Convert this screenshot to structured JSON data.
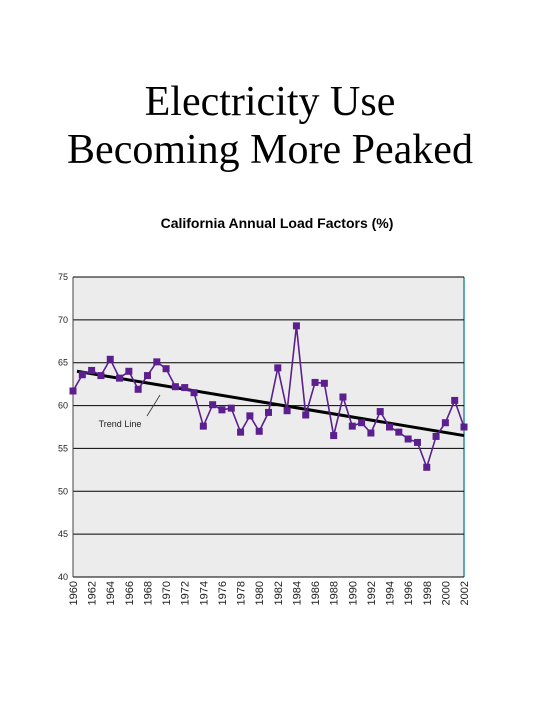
{
  "slide": {
    "title_line1": "Electricity Use",
    "title_line2": "Becoming More Peaked"
  },
  "chart_data": {
    "type": "line",
    "title": "California Annual Load Factors (%)",
    "xlabel": "",
    "ylabel": "",
    "ylim": [
      40,
      75
    ],
    "yticks": [
      40,
      45,
      50,
      55,
      60,
      65,
      70,
      75
    ],
    "xlim": [
      1960,
      2002
    ],
    "xticks": [
      1960,
      1962,
      1964,
      1966,
      1968,
      1970,
      1972,
      1974,
      1976,
      1978,
      1980,
      1982,
      1984,
      1986,
      1988,
      1990,
      1992,
      1994,
      1996,
      1998,
      2000,
      2002
    ],
    "grid": true,
    "series": [
      {
        "color": "#5b1f8f",
        "marker": "square",
        "x": [
          1960,
          1961,
          1962,
          1963,
          1964,
          1965,
          1966,
          1967,
          1968,
          1969,
          1970,
          1971,
          1972,
          1973,
          1974,
          1975,
          1976,
          1977,
          1978,
          1979,
          1980,
          1981,
          1982,
          1983,
          1984,
          1985,
          1986,
          1987,
          1988,
          1989,
          1990,
          1991,
          1992,
          1993,
          1994,
          1995,
          1996,
          1997,
          1998,
          1999,
          2000,
          2001,
          2002
        ],
        "values": [
          61.7,
          63.6,
          64.1,
          63.5,
          65.4,
          63.2,
          64.0,
          61.9,
          63.5,
          65.1,
          64.3,
          62.2,
          62.1,
          61.5,
          57.6,
          60.1,
          59.5,
          59.7,
          56.9,
          58.8,
          57.0,
          59.2,
          64.4,
          59.4,
          69.3,
          58.9,
          62.7,
          62.6,
          56.5,
          61.0,
          57.6,
          58.0,
          56.8,
          59.3,
          57.5,
          56.9,
          56.1,
          55.7,
          52.8,
          56.4,
          58.0,
          60.6,
          57.5
        ]
      }
    ],
    "trend_line": {
      "label": "Trend Line",
      "color": "#000000",
      "x": [
        1960,
        2002
      ],
      "values": [
        64.0,
        56.5
      ]
    },
    "annotations": [
      "Trend Line"
    ]
  }
}
